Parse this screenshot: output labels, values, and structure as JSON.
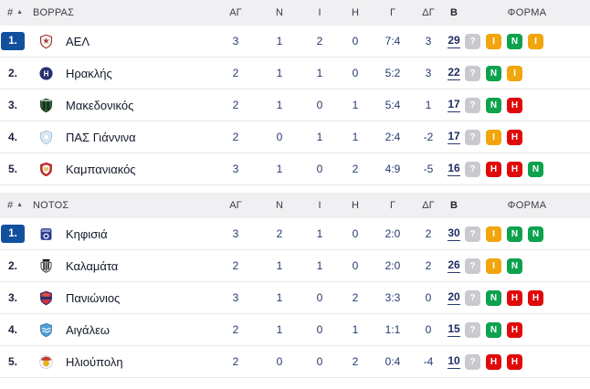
{
  "colors": {
    "rank_badge_blue": "#11509e",
    "win_green": "#0da24e",
    "draw_orange": "#f0a60c",
    "loss_red": "#e00a0a",
    "upcoming_gray": "#cacace",
    "header_bg": "#f0f0f2"
  },
  "icons": {
    "sort_ascending": "▲"
  },
  "headers": {
    "rank": "#",
    "stats": [
      "ΑΓ",
      "Ν",
      "Ι",
      "Η",
      "Γ",
      "ΔΓ"
    ],
    "points": "Β",
    "form": "ΦΟΡΜΑ"
  },
  "tables": [
    {
      "group": "ΒΟΡΡΑΣ",
      "rows": [
        {
          "rank": "1.",
          "leader": true,
          "team": "ΑΕΛ",
          "logo": "ael",
          "stats": [
            "3",
            "1",
            "2",
            "0",
            "7:4",
            "3"
          ],
          "points": "29",
          "form": [
            "?",
            "Ι",
            "Ν",
            "Ι"
          ]
        },
        {
          "rank": "2.",
          "leader": false,
          "team": "Ηρακλής",
          "logo": "iraklis",
          "stats": [
            "2",
            "1",
            "1",
            "0",
            "5:2",
            "3"
          ],
          "points": "22",
          "form": [
            "?",
            "Ν",
            "Ι"
          ]
        },
        {
          "rank": "3.",
          "leader": false,
          "team": "Μακεδονικός",
          "logo": "makedonikos",
          "stats": [
            "2",
            "1",
            "0",
            "1",
            "5:4",
            "1"
          ],
          "points": "17",
          "form": [
            "?",
            "Ν",
            "Η"
          ]
        },
        {
          "rank": "4.",
          "leader": false,
          "team": "ΠΑΣ Γιάννινα",
          "logo": "pas-giannina",
          "stats": [
            "2",
            "0",
            "1",
            "1",
            "2:4",
            "-2"
          ],
          "points": "17",
          "form": [
            "?",
            "Ι",
            "Η"
          ]
        },
        {
          "rank": "5.",
          "leader": false,
          "team": "Καμπανιακός",
          "logo": "kampaniakos",
          "stats": [
            "3",
            "1",
            "0",
            "2",
            "4:9",
            "-5"
          ],
          "points": "16",
          "form": [
            "?",
            "Η",
            "Η",
            "Ν"
          ]
        }
      ]
    },
    {
      "group": "ΝΟΤΟΣ",
      "rows": [
        {
          "rank": "1.",
          "leader": true,
          "team": "Κηφισιά",
          "logo": "kifisia",
          "stats": [
            "3",
            "2",
            "1",
            "0",
            "2:0",
            "2"
          ],
          "points": "30",
          "form": [
            "?",
            "Ι",
            "Ν",
            "Ν"
          ]
        },
        {
          "rank": "2.",
          "leader": false,
          "team": "Καλαμάτα",
          "logo": "kalamata",
          "stats": [
            "2",
            "1",
            "1",
            "0",
            "2:0",
            "2"
          ],
          "points": "26",
          "form": [
            "?",
            "Ι",
            "Ν"
          ]
        },
        {
          "rank": "3.",
          "leader": false,
          "team": "Πανιώνιος",
          "logo": "panionios",
          "stats": [
            "3",
            "1",
            "0",
            "2",
            "3:3",
            "0"
          ],
          "points": "20",
          "form": [
            "?",
            "Ν",
            "Η",
            "Η"
          ]
        },
        {
          "rank": "4.",
          "leader": false,
          "team": "Αιγάλεω",
          "logo": "aigaleo",
          "stats": [
            "2",
            "1",
            "0",
            "1",
            "1:1",
            "0"
          ],
          "points": "15",
          "form": [
            "?",
            "Ν",
            "Η"
          ]
        },
        {
          "rank": "5.",
          "leader": false,
          "team": "Ηλιούπολη",
          "logo": "ilioupoli",
          "stats": [
            "2",
            "0",
            "0",
            "2",
            "0:4",
            "-4"
          ],
          "points": "10",
          "form": [
            "?",
            "Η",
            "Η"
          ]
        }
      ]
    }
  ]
}
